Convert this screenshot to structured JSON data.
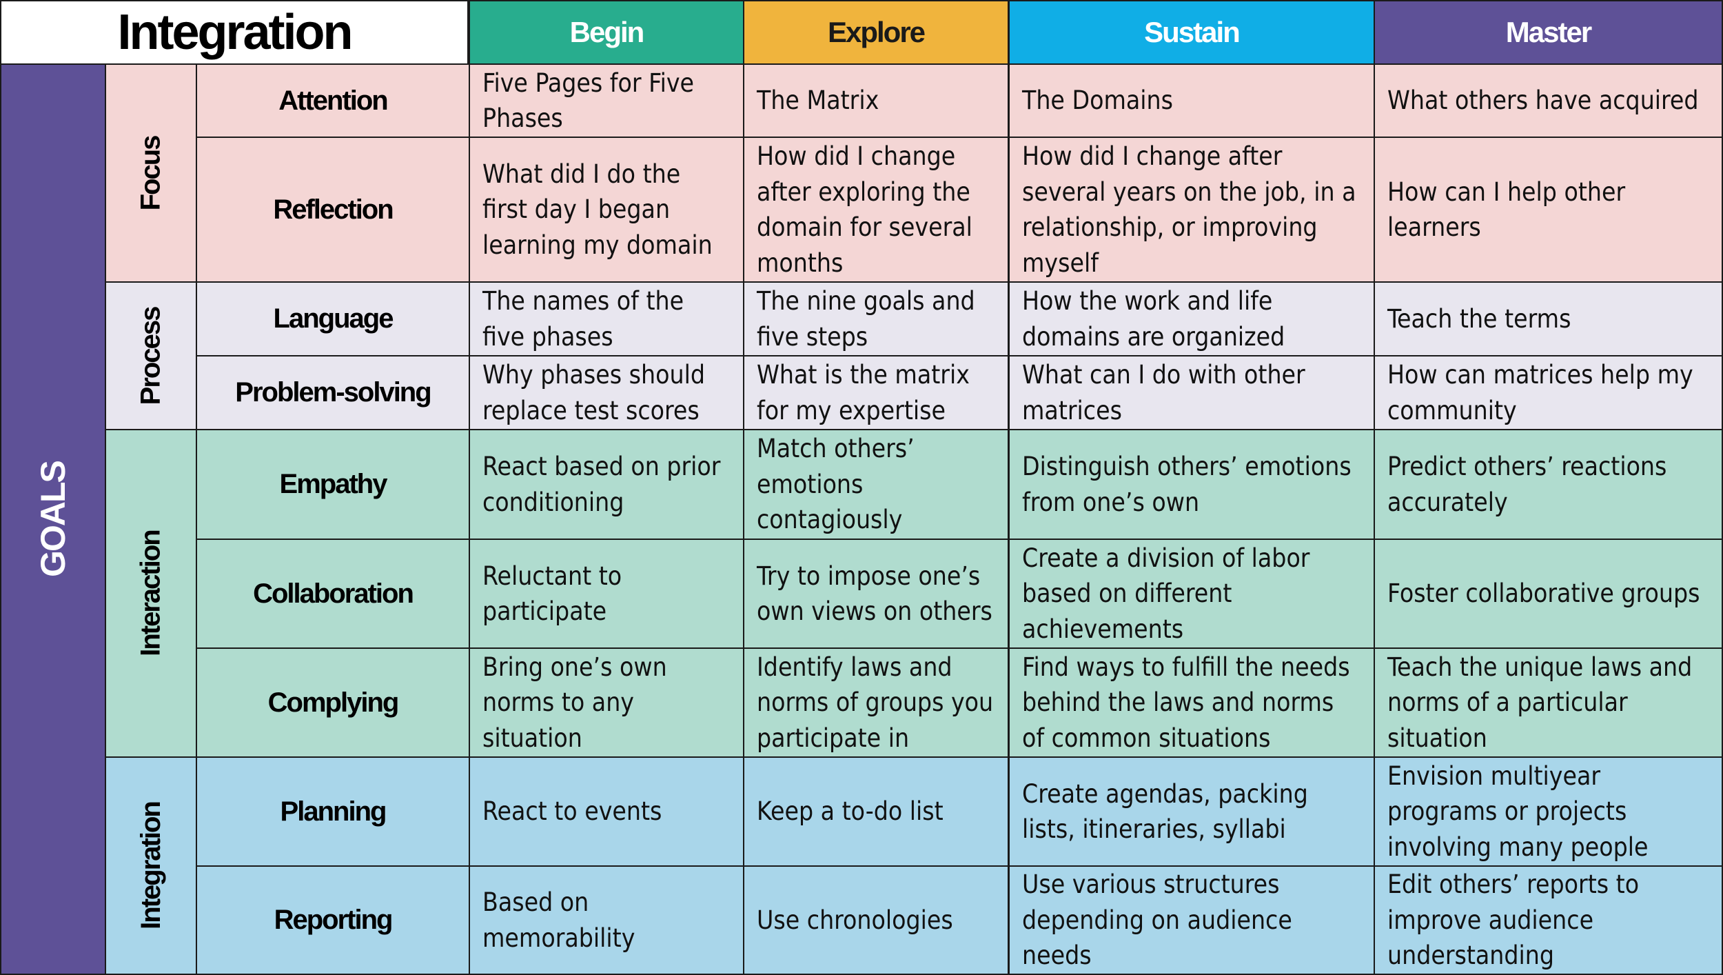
{
  "title": "Integration",
  "side_label": "GOALS",
  "phases": [
    {
      "label": "Begin",
      "bg": "#28ad8e",
      "fg": "#ffffff"
    },
    {
      "label": "Explore",
      "bg": "#f0b43d",
      "fg": "#1a1a1a"
    },
    {
      "label": "Sustain",
      "bg": "#10aee6",
      "fg": "#ffffff"
    },
    {
      "label": "Master",
      "bg": "#5e5197",
      "fg": "#ffffff"
    }
  ],
  "groups": [
    {
      "label": "Focus",
      "bg": "#f4d6d5",
      "rows": [
        {
          "goal": "Attention",
          "cells": [
            "Five Pages for Five Phases",
            "The Matrix",
            "The Domains",
            "What others have acquired"
          ]
        },
        {
          "goal": "Reflection",
          "cells": [
            "What did I do the first day I began learning my domain",
            "How did I change after exploring the domain for several months",
            "How did I change after several years on the job, in a relationship, or improving myself",
            "How can I help other learners"
          ]
        }
      ]
    },
    {
      "label": "Process",
      "bg": "#e8e6ef",
      "rows": [
        {
          "goal": "Language",
          "cells": [
            "The names of the five phases",
            "The nine goals and five steps",
            "How the work and life domains are organized",
            "Teach the terms"
          ]
        },
        {
          "goal": "Problem-solving",
          "cells": [
            "Why phases should replace test scores",
            "What is the matrix for my expertise",
            "What can I do with other matrices",
            "How can matrices help my community"
          ]
        }
      ]
    },
    {
      "label": "Interaction",
      "bg": "#b0dccf",
      "rows": [
        {
          "goal": "Empathy",
          "cells": [
            "React based on prior conditioning",
            "Match others’ emotions contagiously",
            "Distinguish others’ emotions from one’s own",
            "Predict others’ reactions accurately"
          ]
        },
        {
          "goal": "Collaboration",
          "cells": [
            "Reluctant to participate",
            "Try to impose one’s own views on others",
            "Create a division of labor based on different achievements",
            "Foster collaborative groups"
          ]
        },
        {
          "goal": "Complying",
          "cells": [
            "Bring one’s own norms to any situation",
            "Identify laws and norms of groups you participate in",
            "Find ways to fulfill the needs behind the laws and norms of common situations",
            "Teach the unique laws and norms of a particular situation"
          ]
        }
      ]
    },
    {
      "label": "Integration",
      "bg": "#a9d6ea",
      "rows": [
        {
          "goal": "Planning",
          "cells": [
            "React to events",
            "Keep a to-do list",
            "Create agendas, packing lists, itineraries, syllabi",
            "Envision multiyear programs or projects involving many people"
          ]
        },
        {
          "goal": "Reporting",
          "cells": [
            "Based on memorability",
            "Use chronologies",
            "Use various structures depending on audience needs",
            "Edit others’ reports to improve audience understanding"
          ]
        }
      ]
    }
  ]
}
